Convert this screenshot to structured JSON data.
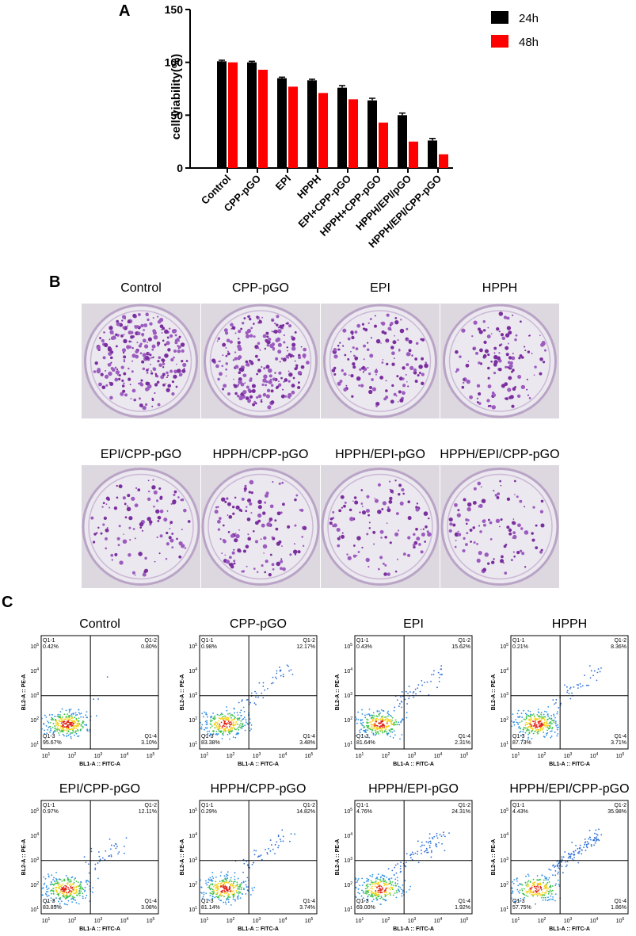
{
  "panel_labels": [
    "A",
    "B",
    "C"
  ],
  "chart_data": {
    "type": "bar",
    "y_label": "cell viability(%)",
    "categories": [
      "Control",
      "CPP-pGO",
      "EPI",
      "HPPH",
      "EPI+CPP-pGO",
      "HPPH+CPP-pGO",
      "HPPH/EPI/pGO",
      "HPPH/EPI/CPP-pGO"
    ],
    "series": [
      {
        "name": "24h",
        "color": "#000000",
        "values": [
          101,
          100,
          85,
          83,
          76,
          64,
          50,
          26
        ],
        "errors": [
          1,
          1,
          1,
          1,
          2,
          2,
          2,
          2
        ]
      },
      {
        "name": "48h",
        "color": "#ff0000",
        "values": [
          100,
          93,
          77,
          71,
          65,
          43,
          25,
          13
        ],
        "errors": [
          0,
          0,
          0,
          0,
          0,
          0,
          0,
          0
        ]
      }
    ],
    "ylim": [
      0,
      150
    ],
    "yticks": [
      0,
      50,
      100,
      150
    ]
  },
  "colony": {
    "titles": [
      "Control",
      "CPP-pGO",
      "EPI",
      "HPPH",
      "EPI/CPP-pGO",
      "HPPH/CPP-pGO",
      "HPPH/EPI-pGO",
      "HPPH/EPI/CPP-pGO"
    ]
  },
  "flow": {
    "x_label": "BL1-A :: FITC-A",
    "y_label": "BL2-A :: PE-A",
    "tick_base": "10",
    "tick_exponents": [
      "1",
      "2",
      "3",
      "4",
      "5"
    ],
    "quadrant_names": [
      "Q1-1",
      "Q1-2",
      "Q1-3",
      "Q1-4"
    ],
    "plots": [
      {
        "title": "Control",
        "percents": [
          "0.42%",
          "0.80%",
          "95.67%",
          "3.10%"
        ]
      },
      {
        "title": "CPP-pGO",
        "percents": [
          "0.98%",
          "12.17%",
          "83.38%",
          "3.48%"
        ]
      },
      {
        "title": "EPI",
        "percents": [
          "0.43%",
          "15.62%",
          "81.64%",
          "2.31%"
        ]
      },
      {
        "title": "HPPH",
        "percents": [
          "0.21%",
          "8.36%",
          "87.73%",
          "3.71%"
        ]
      },
      {
        "title": "EPI/CPP-pGO",
        "percents": [
          "0.97%",
          "12.11%",
          "83.85%",
          "3.08%"
        ]
      },
      {
        "title": "HPPH/CPP-pGO",
        "percents": [
          "0.29%",
          "14.82%",
          "81.14%",
          "3.74%"
        ]
      },
      {
        "title": "HPPH/EPI-pGO",
        "percents": [
          "4.76%",
          "24.31%",
          "69.00%",
          "1.92%"
        ]
      },
      {
        "title": "HPPH/EPI/CPP-pGO",
        "percents": [
          "4.43%",
          "35.98%",
          "57.75%",
          "1.86%"
        ]
      }
    ]
  }
}
